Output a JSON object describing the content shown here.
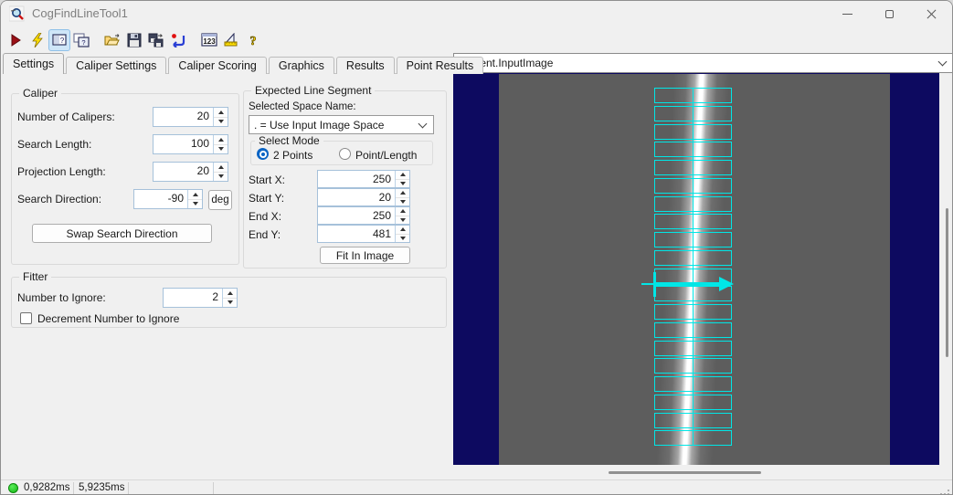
{
  "window": {
    "title": "CogFindLineTool1"
  },
  "toolbar": {
    "icons": [
      "run",
      "run-electric",
      "show-tool-window",
      "float-tool-window",
      "open-file",
      "save-file",
      "save-as",
      "reset-tool",
      "show-records",
      "electrode",
      "help"
    ]
  },
  "tabs": {
    "active": "Settings",
    "items": [
      "Settings",
      "Caliper Settings",
      "Caliper Scoring",
      "Graphics",
      "Results",
      "Point Results"
    ]
  },
  "caliper": {
    "title": "Caliper",
    "fields": [
      {
        "label": "Number of Calipers:",
        "value": "20"
      },
      {
        "label": "Search Length:",
        "value": "100"
      },
      {
        "label": "Projection Length:",
        "value": "20"
      },
      {
        "label": "Search Direction:",
        "value": "-90",
        "unit": "deg"
      }
    ],
    "swap_button": "Swap Search Direction"
  },
  "expected_line_segment": {
    "title": "Expected Line Segment",
    "space_name_label": "Selected Space Name:",
    "space_name_value": ". = Use Input Image Space",
    "select_mode": {
      "title": "Select Mode",
      "options": [
        {
          "label": "2 Points",
          "selected": true
        },
        {
          "label": "Point/Length",
          "selected": false
        }
      ]
    },
    "fields": [
      {
        "label": "Start X:",
        "value": "250"
      },
      {
        "label": "Start Y:",
        "value": "20"
      },
      {
        "label": "End X:",
        "value": "250"
      },
      {
        "label": "End Y:",
        "value": "481"
      }
    ],
    "fit_button": "Fit In Image"
  },
  "fitter": {
    "title": "Fitter",
    "number_to_ignore_label": "Number to Ignore:",
    "number_to_ignore_value": "2",
    "decrement_checkbox_label": "Decrement Number to Ignore",
    "decrement_checked": false
  },
  "image_panel": {
    "source_selector": "Current.InputImage",
    "caliper_count": 20,
    "overlay_color": "#00e6e6",
    "background_color": "#0d0a60",
    "image_gray": "#5d5d5d"
  },
  "status_bar": {
    "run_time": "0,9282ms",
    "total_time": "5,9235ms",
    "status_color": "#1fc91f"
  }
}
